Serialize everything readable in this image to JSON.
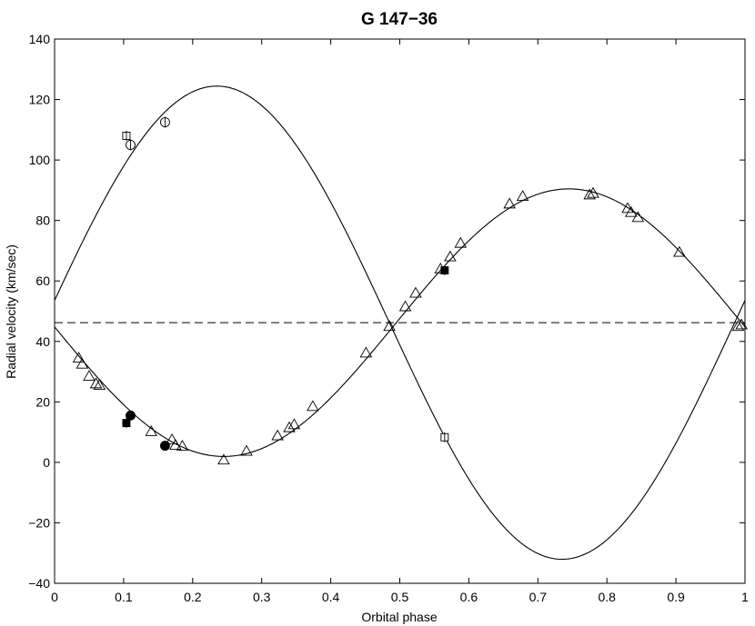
{
  "chart_data": {
    "type": "scatter",
    "title": "G 147−36",
    "xlabel": "Orbital phase",
    "ylabel": "Radial velocity (km/sec)",
    "xlim": [
      0,
      1
    ],
    "ylim": [
      -40,
      140
    ],
    "xticks": [
      0,
      0.1,
      0.2,
      0.3,
      0.4,
      0.5,
      0.6,
      0.7,
      0.8,
      0.9,
      1
    ],
    "xtick_labels": [
      "0",
      "0.1",
      "0.2",
      "0.3",
      "0.4",
      "0.5",
      "0.6",
      "0.7",
      "0.8",
      "0.9",
      "1"
    ],
    "yticks": [
      -40,
      -20,
      0,
      20,
      40,
      60,
      80,
      100,
      120,
      140
    ],
    "ytick_labels": [
      "−40",
      "−20",
      "0",
      "20",
      "40",
      "60",
      "80",
      "100",
      "120",
      "140"
    ],
    "grid": false,
    "systemic_velocity": 46.2,
    "curves": [
      {
        "component": "primary",
        "gamma": 46.2,
        "K": 44.25,
        "phase_of_max": 0.745
      },
      {
        "component": "secondary",
        "gamma": 46.2,
        "K": 78.25,
        "phase_of_max": 0.235
      }
    ],
    "series": [
      {
        "marker": "triangle-open",
        "x": [
          0.035,
          0.04,
          0.05,
          0.06,
          0.065,
          0.14,
          0.17,
          0.175,
          0.185,
          0.245,
          0.278,
          0.323,
          0.34,
          0.347,
          0.374,
          0.451,
          0.485,
          0.508,
          0.523,
          0.559,
          0.573,
          0.588,
          0.659,
          0.678,
          0.775,
          0.78,
          0.83,
          0.835,
          0.845,
          0.905,
          0.99,
          0.995
        ],
        "y": [
          34.5,
          32.5,
          28.5,
          26,
          25.5,
          10.2,
          7.5,
          5.7,
          5.4,
          0.8,
          3.7,
          8.8,
          11.5,
          12.5,
          18.5,
          36.2,
          45,
          51.5,
          56,
          64,
          68,
          72.5,
          85.5,
          88,
          88.5,
          89,
          84,
          82.7,
          81,
          69.5,
          45,
          45.5
        ]
      },
      {
        "marker": "circle-open-bar",
        "x": [
          0.11,
          0.16
        ],
        "y": [
          105,
          112.5
        ]
      },
      {
        "marker": "square-open-bar",
        "x": [
          0.104,
          0.565
        ],
        "y": [
          108,
          8.3
        ]
      },
      {
        "marker": "circle-filled",
        "x": [
          0.11,
          0.16
        ],
        "y": [
          15.5,
          5.5
        ]
      },
      {
        "marker": "square-filled-bar",
        "x": [
          0.104,
          0.565
        ],
        "y": [
          13,
          63.5
        ]
      }
    ]
  }
}
